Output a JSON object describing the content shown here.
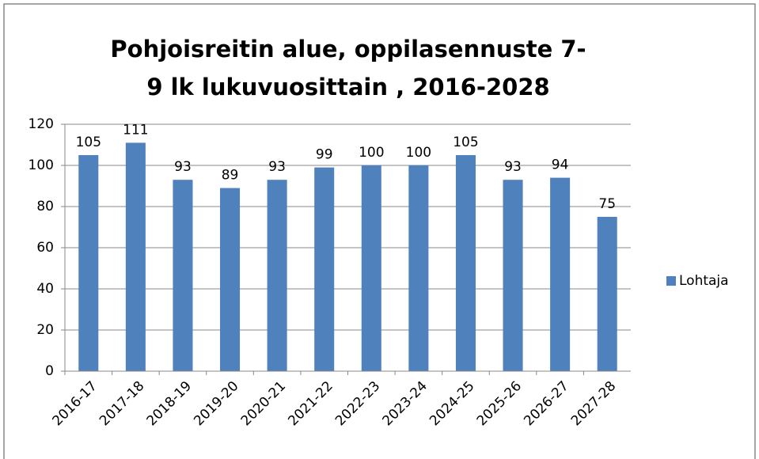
{
  "chart_data": {
    "type": "bar",
    "title": "Pohjoisreitin alue, oppilasennuste 7-9 lk lukuvuosittain , 2016-2028",
    "categories": [
      "2016-17",
      "2017-18",
      "2018-19",
      "2019-20",
      "2020-21",
      "2021-22",
      "2022-23",
      "2023-24",
      "2024-25",
      "2025-26",
      "2026-27",
      "2027-28"
    ],
    "series": [
      {
        "name": "Lohtaja",
        "color": "#4f81bd",
        "values": [
          105,
          111,
          93,
          89,
          93,
          99,
          100,
          100,
          105,
          93,
          94,
          75
        ]
      }
    ],
    "ylim": [
      0,
      120
    ],
    "yticks": [
      0,
      20,
      40,
      60,
      80,
      100,
      120
    ],
    "grid": true,
    "legend": "right"
  }
}
